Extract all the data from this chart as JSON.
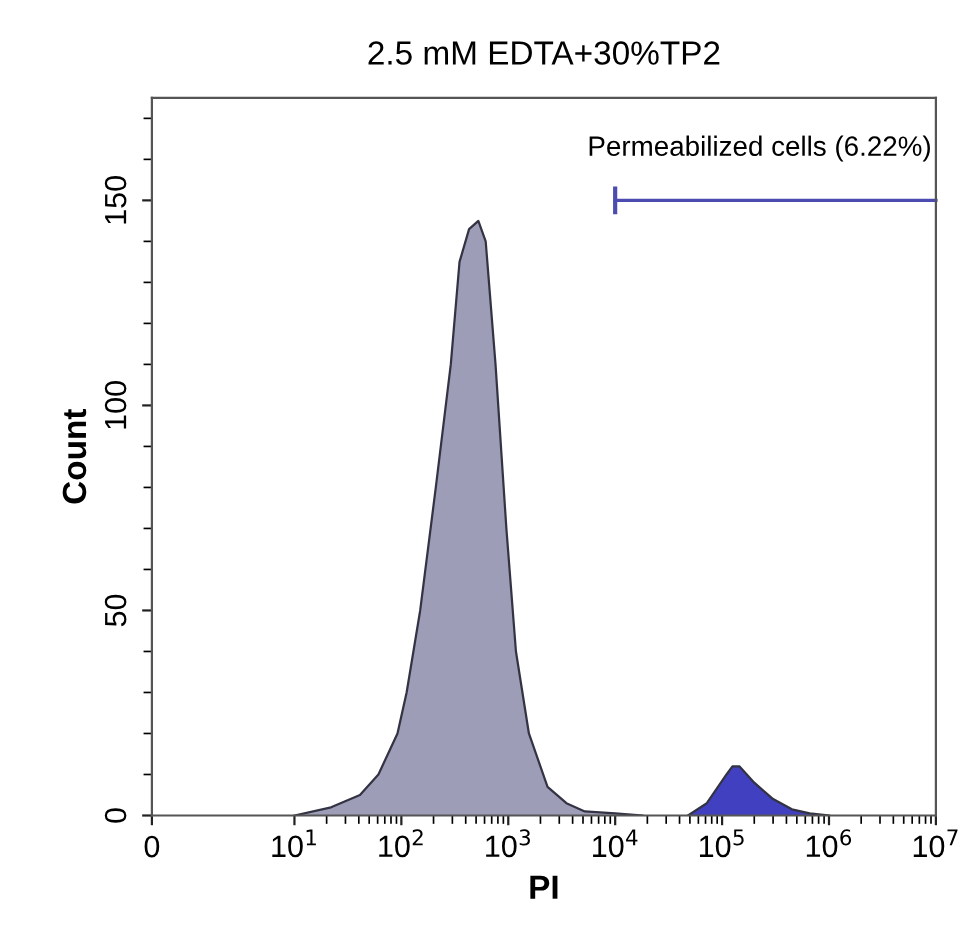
{
  "chart_data": {
    "type": "area",
    "title": "2.5 mM EDTA+30%TP2",
    "xlabel": "PI",
    "ylabel": "Count",
    "log": "x",
    "xlim": [
      0,
      10000000
    ],
    "xticks": [
      0,
      {
        "value": 10,
        "label": "10$^{1}$"
      },
      {
        "value": 100,
        "label": "10$^{2}$"
      },
      {
        "value": 1000,
        "label": "10$^{3}$"
      },
      {
        "value": 10000,
        "label": "10$^{4}$"
      },
      {
        "value": 100000,
        "label": "10$^{5}$"
      },
      {
        "value": 1000000,
        "label": "10$^{6}$"
      },
      {
        "value": 10000000,
        "label": "10$^{7}$"
      }
    ],
    "ylim": [
      0,
      175
    ],
    "yticks": [
      0,
      50,
      100,
      150
    ],
    "grid": false,
    "series": [
      {
        "color": "#9d9db8",
        "x": [
          10,
          22,
          41,
          61,
          92,
          112,
          150,
          210,
          290,
          350,
          430,
          525,
          615,
          760,
          960,
          1180,
          1560,
          2330,
          3500,
          5200,
          10000,
          18000
        ],
        "values": [
          0,
          2,
          5,
          10,
          20,
          30,
          50,
          80,
          110,
          135,
          143,
          145,
          140,
          110,
          70,
          40,
          20,
          7,
          3,
          1,
          0.5,
          0
        ]
      },
      {
        "color": "#4040c0",
        "x": [
          48000,
          72000,
          110000,
          125000,
          145000,
          200000,
          300000,
          450000,
          660000,
          1000000
        ],
        "values": [
          0,
          3,
          10,
          12,
          12,
          8,
          4,
          1.5,
          0.5,
          0
        ]
      },
      {
        "type": "line",
        "color": "#4b4bb0",
        "x": [
          10000,
          10000000
        ],
        "values": [
          150,
          150
        ]
      }
    ],
    "annotations": [
      {
        "text": "Permeabilized cells (6.22%)",
        "x": 10000,
        "y": 150
      }
    ]
  }
}
